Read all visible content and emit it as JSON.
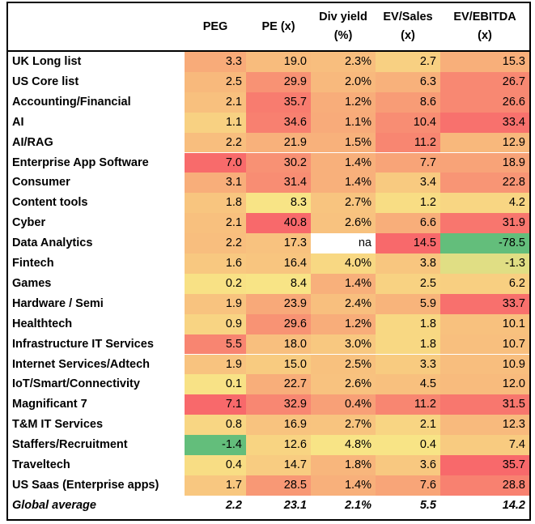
{
  "columns": [
    "PEG",
    "PE (x)",
    "Div yield (%)",
    "EV/Sales (x)",
    "EV/EBITDA (x)"
  ],
  "header": {
    "peg": "PEG",
    "pe": "PE (x)",
    "div_1": "Div yield",
    "div_2": "(%)",
    "evs_1": "EV/Sales",
    "evs_2": "(x)",
    "eve_1": "EV/EBITDA",
    "eve_2": "(x)"
  },
  "rows": [
    {
      "label": "UK Long list",
      "values": [
        "3.3",
        "19.0",
        "2.3%",
        "2.7",
        "15.3"
      ]
    },
    {
      "label": "US Core list",
      "values": [
        "2.5",
        "29.9",
        "2.0%",
        "6.3",
        "26.7"
      ]
    },
    {
      "label": "Accounting/Financial",
      "values": [
        "2.1",
        "35.7",
        "1.2%",
        "8.6",
        "26.6"
      ]
    },
    {
      "label": "AI",
      "values": [
        "1.1",
        "34.6",
        "1.1%",
        "10.4",
        "33.4"
      ]
    },
    {
      "label": "AI/RAG",
      "values": [
        "2.2",
        "21.9",
        "1.5%",
        "11.2",
        "12.9"
      ]
    },
    {
      "label": "Enterprise App Software",
      "values": [
        "7.0",
        "30.2",
        "1.4%",
        "7.7",
        "18.9"
      ]
    },
    {
      "label": "Consumer",
      "values": [
        "3.1",
        "31.4",
        "1.4%",
        "3.4",
        "22.8"
      ]
    },
    {
      "label": "Content tools",
      "values": [
        "1.8",
        "8.3",
        "2.7%",
        "1.2",
        "4.2"
      ]
    },
    {
      "label": "Cyber",
      "values": [
        "2.1",
        "40.8",
        "2.6%",
        "6.6",
        "31.9"
      ]
    },
    {
      "label": "Data Analytics",
      "values": [
        "2.2",
        "17.3",
        "na",
        "14.5",
        "-78.5"
      ]
    },
    {
      "label": "Fintech",
      "values": [
        "1.6",
        "16.4",
        "4.0%",
        "3.8",
        "-1.3"
      ]
    },
    {
      "label": "Games",
      "values": [
        "0.2",
        "8.4",
        "1.4%",
        "2.5",
        "6.2"
      ]
    },
    {
      "label": "Hardware / Semi",
      "values": [
        "1.9",
        "23.9",
        "2.4%",
        "5.9",
        "33.7"
      ]
    },
    {
      "label": "Healthtech",
      "values": [
        "0.9",
        "29.6",
        "1.2%",
        "1.8",
        "10.1"
      ]
    },
    {
      "label": "Infrastructure IT Services",
      "values": [
        "5.5",
        "18.0",
        "3.0%",
        "1.8",
        "10.7"
      ]
    },
    {
      "label": "Internet Services/Adtech",
      "values": [
        "1.9",
        "15.0",
        "2.5%",
        "3.3",
        "10.9"
      ]
    },
    {
      "label": "IoT/Smart/Connectivity",
      "values": [
        "0.1",
        "22.7",
        "2.6%",
        "4.5",
        "12.0"
      ]
    },
    {
      "label": "Magnificant 7",
      "values": [
        "7.1",
        "32.9",
        "0.4%",
        "11.2",
        "31.5"
      ]
    },
    {
      "label": "T&M IT Services",
      "values": [
        "0.8",
        "16.9",
        "2.7%",
        "2.1",
        "12.3"
      ]
    },
    {
      "label": "Staffers/Recruitment",
      "values": [
        "-1.4",
        "12.6",
        "4.8%",
        "0.4",
        "7.4"
      ]
    },
    {
      "label": "Traveltech",
      "values": [
        "0.4",
        "14.7",
        "1.8%",
        "3.6",
        "35.7"
      ]
    },
    {
      "label": "US Saas (Enterprise apps)",
      "values": [
        "1.7",
        "28.5",
        "1.4%",
        "7.6",
        "28.8"
      ]
    }
  ],
  "average": {
    "label": "Global average",
    "values": [
      "2.2",
      "23.1",
      "2.1%",
      "5.5",
      "14.2"
    ]
  },
  "colors": {
    "heat_low": "#f8e486",
    "heat_high": "#f8696b",
    "heat_negative": "#63be7b",
    "na_cell": "#ffffff",
    "border": "#000000"
  }
}
